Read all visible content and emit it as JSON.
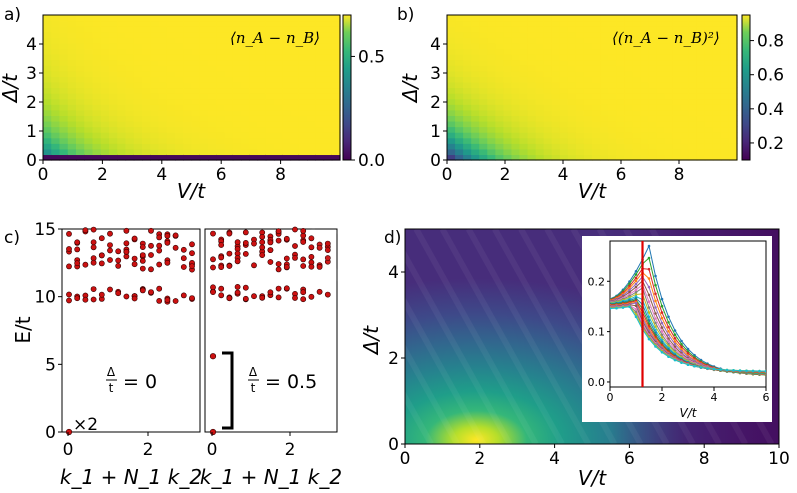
{
  "chart_data": [
    {
      "panel_label": "a)",
      "type": "heatmap",
      "annotation": "⟨n_A − n_B⟩",
      "xlabel": "V/t",
      "ylabel": "Δ/t",
      "xlim": [
        0,
        10
      ],
      "ylim": [
        0,
        5
      ],
      "x_ticks": [
        "0",
        "2",
        "4",
        "6",
        "8"
      ],
      "y_ticks": [
        "0",
        "1",
        "2",
        "3",
        "4"
      ],
      "colorbar": {
        "ticks": [
          "0.0",
          "0.5"
        ],
        "range": [
          0,
          0.7
        ]
      },
      "description": "Order parameter, near 0 at Δ/t≈0, rising toward ~0.7 for large Δ or V"
    },
    {
      "panel_label": "b)",
      "type": "heatmap",
      "annotation": "⟨(n_A − n_B)²⟩",
      "xlabel": "V/t",
      "ylabel": "Δ/t",
      "xlim": [
        0,
        10
      ],
      "ylim": [
        0,
        5
      ],
      "x_ticks": [
        "0",
        "2",
        "4",
        "6",
        "8"
      ],
      "y_ticks": [
        "0",
        "1",
        "2",
        "3",
        "4"
      ],
      "colorbar": {
        "ticks": [
          "0.2",
          "0.4",
          "0.6",
          "0.8"
        ],
        "range": [
          0.1,
          0.95
        ]
      },
      "description": "Squared order parameter, low near origin, approaching ~0.95 elsewhere"
    },
    {
      "panel_label": "c)",
      "type": "scatter",
      "ylabel": "E/t",
      "xlabel": "k_1 + N_1 k_2",
      "ylim": [
        0,
        15
      ],
      "y_ticks": [
        "0",
        "5",
        "10",
        "15"
      ],
      "x_ticks": [
        "0",
        "2"
      ],
      "subpanels": [
        {
          "label": "Δ/t = 0",
          "frac_num": "Δ",
          "frac_den": "t",
          "value_text": "= 0",
          "ground_state_E": 0,
          "degeneracy": "×2",
          "gap_band": [
            9.6,
            10.6
          ],
          "upper_band": [
            12,
            15
          ]
        },
        {
          "label": "Δ/t = 0.5",
          "frac_num": "Δ",
          "frac_den": "t",
          "value_text": "= 0.5",
          "ground_state_E": 0,
          "first_excited_E": 5.6,
          "gap_band": [
            9.8,
            10.8
          ],
          "upper_band": [
            12,
            15
          ]
        }
      ]
    },
    {
      "panel_label": "d)",
      "type": "heatmap",
      "xlabel": "V/t",
      "ylabel": "Δ/t",
      "xlim": [
        0,
        10
      ],
      "ylim": [
        0,
        5
      ],
      "x_ticks": [
        "0",
        "2",
        "4",
        "6",
        "8",
        "10"
      ],
      "y_ticks": [
        "0",
        "2",
        "4"
      ],
      "peak": {
        "V": 1.5,
        "Delta": 0.1
      },
      "inset": {
        "type": "line",
        "xlabel": "V/t",
        "xlim": [
          0,
          6
        ],
        "ylim": [
          0,
          0.27
        ],
        "x_ticks": [
          "0",
          "2",
          "4",
          "6"
        ],
        "y_ticks": [
          "0.0",
          "0.1",
          "0.2"
        ],
        "marker_line_V": 1.25,
        "n_series": 20,
        "peak_values": [
          0.27,
          0.255,
          0.24,
          0.228,
          0.216,
          0.205,
          0.195,
          0.187,
          0.18,
          0.174,
          0.169,
          0.165,
          0.162,
          0.159,
          0.157,
          0.155,
          0.153,
          0.152,
          0.151,
          0.15
        ],
        "tail_value_at_6": [
          0.012,
          0.012,
          0.013,
          0.013,
          0.014,
          0.014,
          0.015,
          0.015,
          0.016,
          0.016,
          0.017,
          0.017,
          0.018,
          0.018,
          0.019,
          0.019,
          0.02,
          0.02,
          0.021,
          0.021
        ]
      }
    }
  ]
}
